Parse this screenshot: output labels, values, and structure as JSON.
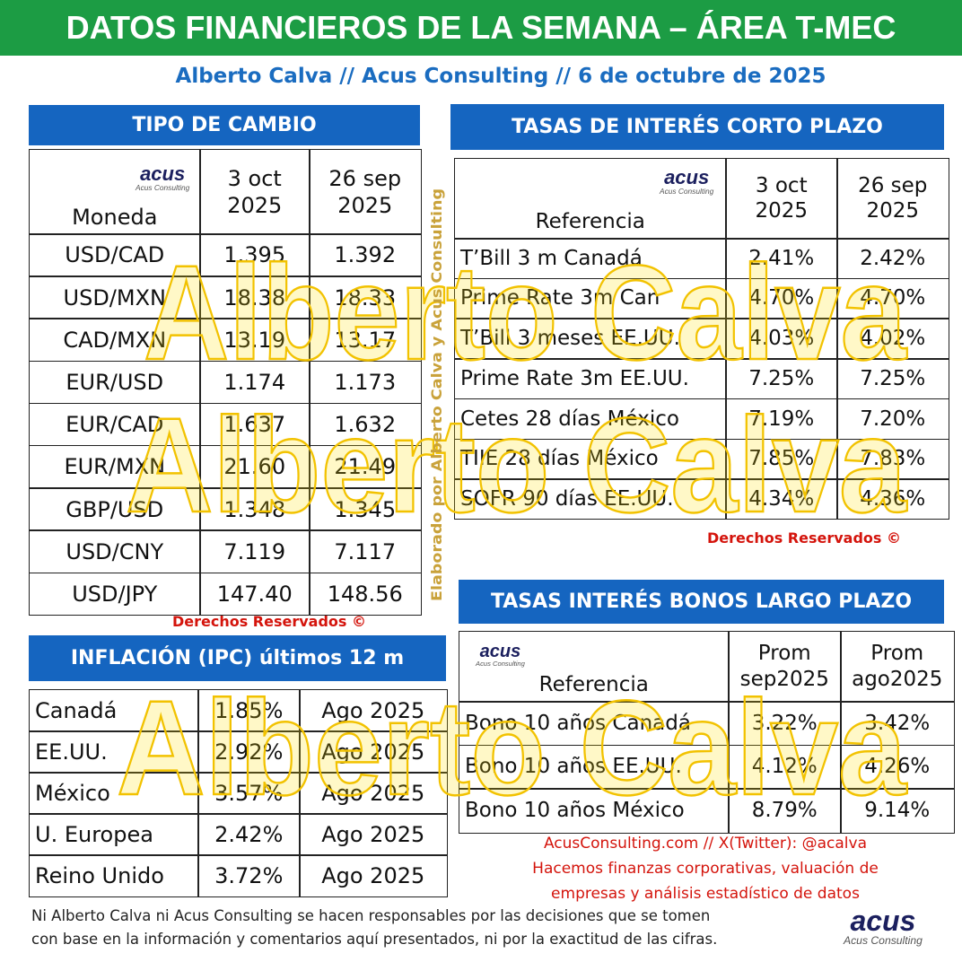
{
  "header": {
    "title": "DATOS FINANCIEROS DE LA SEMANA – ÁREA T-MEC",
    "subtitle": "Alberto Calva // Acus Consulting // 6 de octubre de 2025"
  },
  "logo": {
    "name": "acus",
    "tagline": "Acus Consulting"
  },
  "watermark": {
    "text": "Alberto Calva",
    "side": "Elaborado por Alberto Calva y Acus Consulting"
  },
  "copyright": "Derechos Reservados ©",
  "tipo_cambio": {
    "title": "TIPO DE CAMBIO",
    "columns": [
      "Moneda",
      "3 oct 2025",
      "26 sep 2025"
    ],
    "rows": [
      [
        "USD/CAD",
        "1.395",
        "1.392"
      ],
      [
        "USD/MXN",
        "18.38",
        "18.33"
      ],
      [
        "CAD/MXN",
        "13.19",
        "13.17"
      ],
      [
        "EUR/USD",
        "1.174",
        "1.173"
      ],
      [
        "EUR/CAD",
        "1.637",
        "1.632"
      ],
      [
        "EUR/MXN",
        "21.60",
        "21.49"
      ],
      [
        "GBP/USD",
        "1.348",
        "1.345"
      ],
      [
        "USD/CNY",
        "7.119",
        "7.117"
      ],
      [
        "USD/JPY",
        "147.40",
        "148.56"
      ]
    ]
  },
  "inflacion": {
    "title": "INFLACIÓN (IPC) últimos 12 m",
    "rows": [
      [
        "Canadá",
        "1.85%",
        "Ago 2025"
      ],
      [
        "EE.UU.",
        "2.92%",
        "Ago 2025"
      ],
      [
        "México",
        "3.57%",
        "Ago 2025"
      ],
      [
        "U. Europea",
        "2.42%",
        "Ago 2025"
      ],
      [
        "Reino Unido",
        "3.72%",
        "Ago 2025"
      ]
    ]
  },
  "tasas_corto": {
    "title": "TASAS DE INTERÉS CORTO PLAZO",
    "columns": [
      "Referencia",
      "3 oct 2025",
      "26 sep 2025"
    ],
    "rows": [
      [
        "T’Bill 3 m Canadá",
        "2.41%",
        "2.42%"
      ],
      [
        "Prime Rate 3m Can",
        "4.70%",
        "4.70%"
      ],
      [
        "T’Bill 3 meses EE.UU.",
        "4.03%",
        "4.02%"
      ],
      [
        "Prime Rate 3m EE.UU.",
        "7.25%",
        "7.25%"
      ],
      [
        "Cetes 28 días México",
        "7.19%",
        "7.20%"
      ],
      [
        "TIIE 28 días México",
        "7.85%",
        "7.83%"
      ],
      [
        "SOFR 90 días EE.UU.",
        "4.34%",
        "4.36%"
      ]
    ]
  },
  "bonos": {
    "title": "TASAS INTERÉS BONOS LARGO PLAZO",
    "columns": [
      "Referencia",
      "Prom sep2025",
      "Prom ago2025"
    ],
    "rows": [
      [
        "Bono 10 años Canadá",
        "3.22%",
        "3.42%"
      ],
      [
        "Bono 10 años EE.UU.",
        "4.12%",
        "4.26%"
      ],
      [
        "Bono 10 años México",
        "8.79%",
        "9.14%"
      ]
    ]
  },
  "contact": [
    "AcusConsulting.com // X(Twitter): @acalva",
    "Hacemos finanzas corporativas, valuación de",
    "empresas y análisis estadístico de datos"
  ],
  "disclaimer": [
    "Ni Alberto Calva ni Acus Consulting se hacen responsables por las decisiones que se tomen",
    "con base en la información y comentarios aquí presentados, ni por la exactitud de las cifras."
  ]
}
